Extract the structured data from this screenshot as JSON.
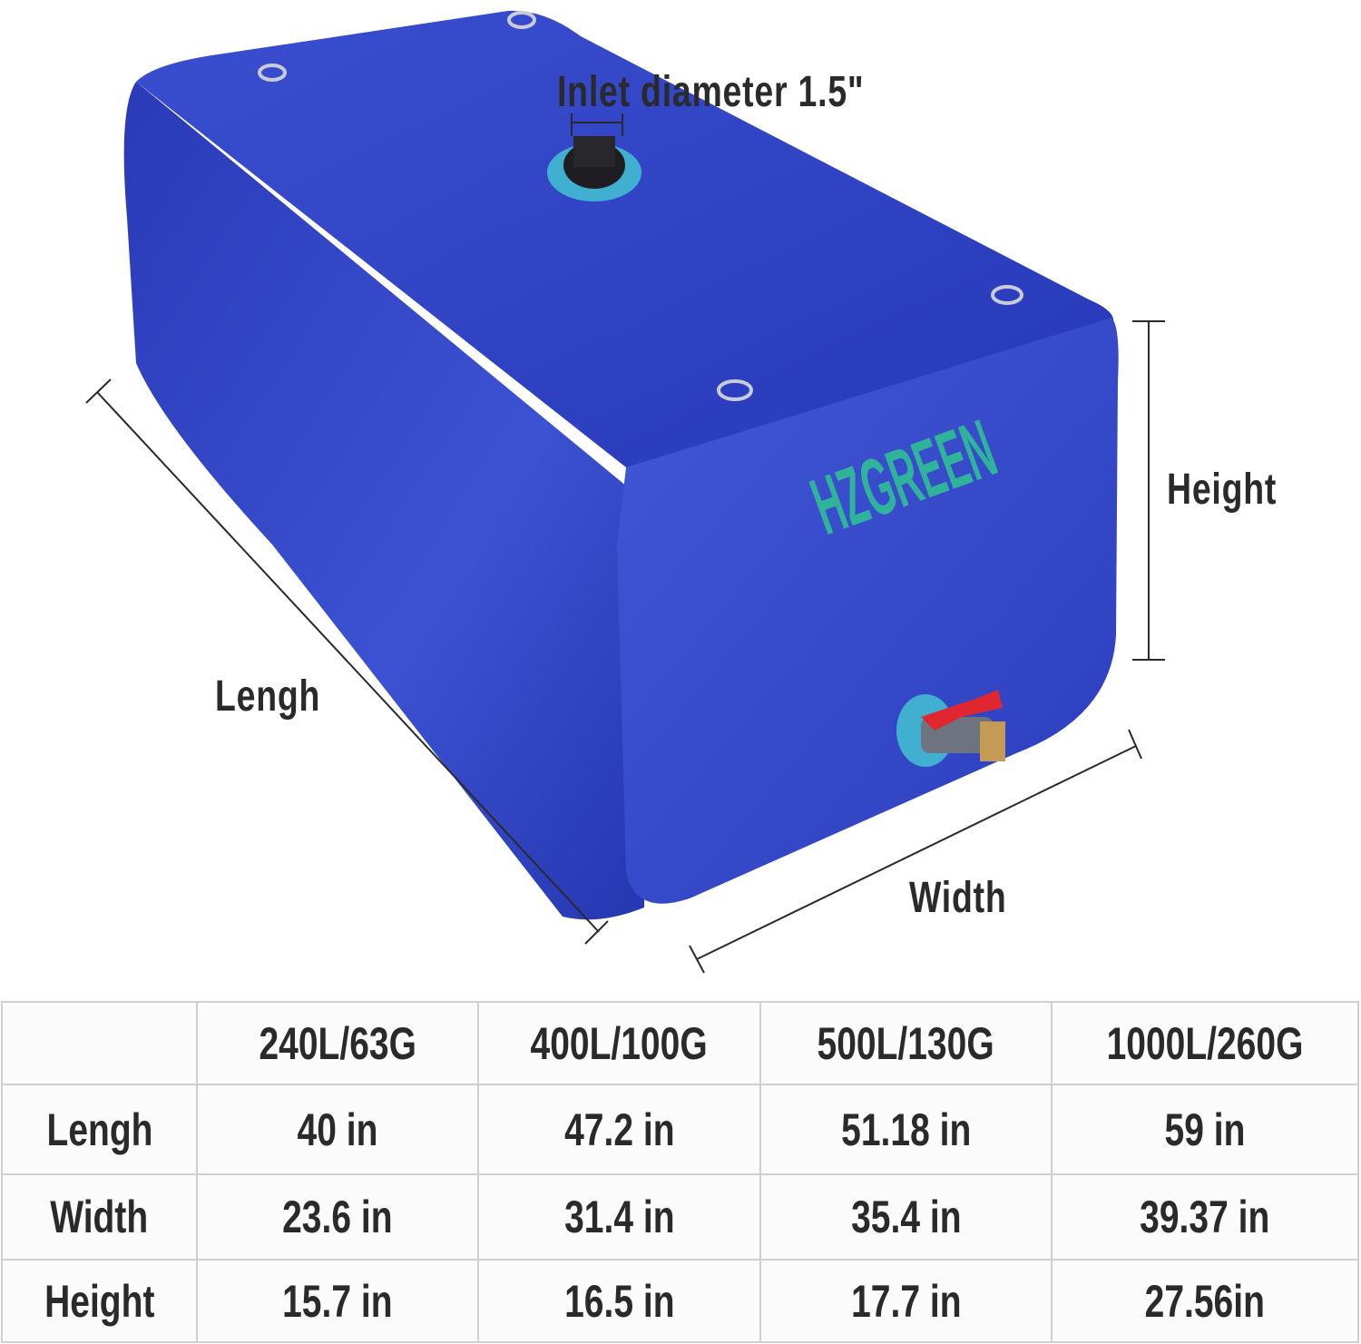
{
  "labels": {
    "inlet": "Inlet diameter 1.5\"",
    "height": "Height",
    "length": "Lengh",
    "width": "Width"
  },
  "brand": "HZGREEN",
  "colors": {
    "tank": "#2f44c4",
    "logo": "#2fb39a",
    "valve": "#e0262e",
    "text": "#2a2a2a"
  },
  "table": {
    "headers": [
      "",
      "240L/63G",
      "400L/100G",
      "500L/130G",
      "1000L/260G"
    ],
    "rows": [
      {
        "label": "Lengh",
        "values": [
          "40 in",
          "47.2 in",
          "51.18 in",
          "59 in"
        ]
      },
      {
        "label": "Width",
        "values": [
          "23.6 in",
          "31.4 in",
          "35.4 in",
          "39.37 in"
        ]
      },
      {
        "label": "Height",
        "values": [
          "15.7 in",
          "16.5 in",
          "17.7 in",
          "27.56in"
        ]
      }
    ]
  }
}
